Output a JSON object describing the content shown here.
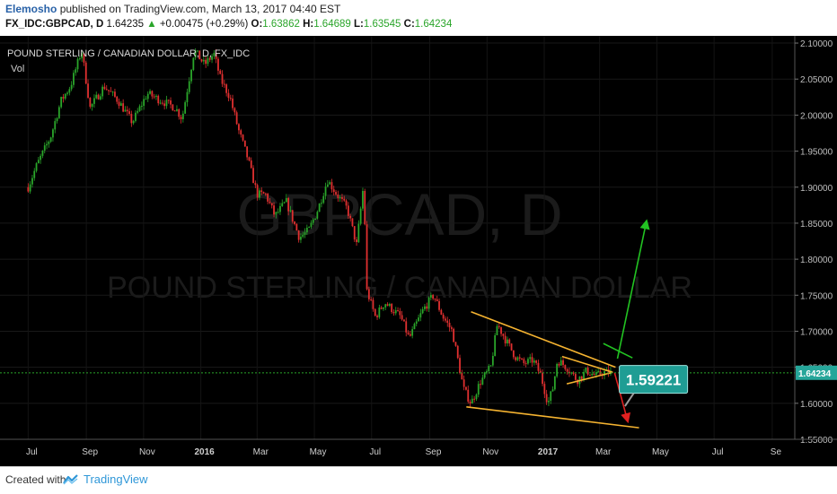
{
  "header": {
    "author": "Elemosho",
    "published_text": "published on TradingView.com, March 13, 2017 04:40 EST",
    "symbol": "FX_IDC:GBPCAD, D",
    "last": "1.64235",
    "change_arrow": "▲",
    "change": "+0.00475 (+0.29%)",
    "o_label": "O:",
    "o_value": "1.63862",
    "h_label": "H:",
    "h_value": "1.64689",
    "l_label": "L:",
    "l_value": "1.63545",
    "c_label": "C:",
    "c_value": "1.64234"
  },
  "watermark": {
    "big": "GBPCAD, D",
    "small": "POUND STERLING / CANADIAN DOLLAR"
  },
  "pane": {
    "title": "POUND STERLING / CANADIAN DOLLAR, D, FX_IDC",
    "indicator": "Vol"
  },
  "footer": {
    "created_with": "Created with",
    "brand": "TradingView"
  },
  "colors": {
    "up": "#2aa52a",
    "down": "#e03030",
    "background": "#000000",
    "trendline": "#f5b330",
    "arrow_up": "#22c322",
    "arrow_down": "#e02020",
    "price_tag": "#26a69a",
    "callout": "#1f9d94"
  },
  "chart_data": {
    "type": "candlestick",
    "symbol": "GBPCAD",
    "interval": "D",
    "ylim": [
      1.55,
      2.11
    ],
    "y_ticks": [
      "2.10000",
      "2.05000",
      "2.00000",
      "1.95000",
      "1.90000",
      "1.85000",
      "1.80000",
      "1.75000",
      "1.70000",
      "1.65000",
      "1.60000",
      "1.55000"
    ],
    "x_ticks": [
      "Jul",
      "Sep",
      "Nov",
      "2016",
      "Mar",
      "May",
      "Jul",
      "Sep",
      "Nov",
      "2017",
      "Mar",
      "May",
      "Jul",
      "Se"
    ],
    "last_price": "1.64234",
    "price_label": "1.59221",
    "price_path": [
      {
        "t": "2015-07-01",
        "p": 1.9
      },
      {
        "t": "2015-07-10",
        "p": 1.93
      },
      {
        "t": "2015-07-25",
        "p": 1.97
      },
      {
        "t": "2015-08-05",
        "p": 2.02
      },
      {
        "t": "2015-08-15",
        "p": 2.04
      },
      {
        "t": "2015-08-27",
        "p": 2.09
      },
      {
        "t": "2015-09-05",
        "p": 2.01
      },
      {
        "t": "2015-09-20",
        "p": 2.04
      },
      {
        "t": "2015-10-05",
        "p": 2.02
      },
      {
        "t": "2015-10-20",
        "p": 1.99
      },
      {
        "t": "2015-11-05",
        "p": 2.03
      },
      {
        "t": "2015-11-20",
        "p": 2.02
      },
      {
        "t": "2015-12-05",
        "p": 2.01
      },
      {
        "t": "2015-12-12",
        "p": 1.995
      },
      {
        "t": "2015-12-25",
        "p": 2.09
      },
      {
        "t": "2016-01-05",
        "p": 2.07
      },
      {
        "t": "2016-01-15",
        "p": 2.085
      },
      {
        "t": "2016-01-22",
        "p": 2.05
      },
      {
        "t": "2016-02-01",
        "p": 2.025
      },
      {
        "t": "2016-02-10",
        "p": 1.98
      },
      {
        "t": "2016-02-20",
        "p": 1.94
      },
      {
        "t": "2016-03-01",
        "p": 1.89
      },
      {
        "t": "2016-03-10",
        "p": 1.89
      },
      {
        "t": "2016-03-20",
        "p": 1.86
      },
      {
        "t": "2016-04-01",
        "p": 1.88
      },
      {
        "t": "2016-04-15",
        "p": 1.83
      },
      {
        "t": "2016-04-25",
        "p": 1.84
      },
      {
        "t": "2016-05-05",
        "p": 1.87
      },
      {
        "t": "2016-05-15",
        "p": 1.91
      },
      {
        "t": "2016-05-25",
        "p": 1.89
      },
      {
        "t": "2016-06-05",
        "p": 1.87
      },
      {
        "t": "2016-06-15",
        "p": 1.82
      },
      {
        "t": "2016-06-23",
        "p": 1.91
      },
      {
        "t": "2016-06-25",
        "p": 1.76
      },
      {
        "t": "2016-07-05",
        "p": 1.72
      },
      {
        "t": "2016-07-15",
        "p": 1.74
      },
      {
        "t": "2016-08-01",
        "p": 1.72
      },
      {
        "t": "2016-08-10",
        "p": 1.69
      },
      {
        "t": "2016-08-25",
        "p": 1.73
      },
      {
        "t": "2016-09-05",
        "p": 1.75
      },
      {
        "t": "2016-09-15",
        "p": 1.72
      },
      {
        "t": "2016-09-25",
        "p": 1.7
      },
      {
        "t": "2016-10-07",
        "p": 1.62
      },
      {
        "t": "2016-10-15",
        "p": 1.6
      },
      {
        "t": "2016-10-25",
        "p": 1.63
      },
      {
        "t": "2016-11-05",
        "p": 1.65
      },
      {
        "t": "2016-11-12",
        "p": 1.71
      },
      {
        "t": "2016-11-20",
        "p": 1.69
      },
      {
        "t": "2016-12-01",
        "p": 1.665
      },
      {
        "t": "2016-12-10",
        "p": 1.655
      },
      {
        "t": "2016-12-20",
        "p": 1.66
      },
      {
        "t": "2016-12-28",
        "p": 1.64
      },
      {
        "t": "2017-01-05",
        "p": 1.6
      },
      {
        "t": "2017-01-10",
        "p": 1.62
      },
      {
        "t": "2017-01-15",
        "p": 1.66
      },
      {
        "t": "2017-01-25",
        "p": 1.65
      },
      {
        "t": "2017-02-05",
        "p": 1.632
      },
      {
        "t": "2017-02-15",
        "p": 1.645
      },
      {
        "t": "2017-02-25",
        "p": 1.638
      },
      {
        "t": "2017-03-05",
        "p": 1.643
      },
      {
        "t": "2017-03-13",
        "p": 1.6423
      }
    ],
    "annotations": [
      {
        "kind": "trendline",
        "label": "upper",
        "from": {
          "t": "2016-10-15",
          "p": 1.727
        },
        "to": {
          "t": "2017-03-18",
          "p": 1.65
        }
      },
      {
        "kind": "trendline",
        "label": "lower",
        "from": {
          "t": "2016-10-10",
          "p": 1.595
        },
        "to": {
          "t": "2017-04-12",
          "p": 1.566
        }
      },
      {
        "kind": "trendline",
        "label": "inner-upper",
        "from": {
          "t": "2017-01-20",
          "p": 1.665
        },
        "to": {
          "t": "2017-03-15",
          "p": 1.643
        }
      },
      {
        "kind": "trendline",
        "label": "inner-lower",
        "from": {
          "t": "2017-01-25",
          "p": 1.627
        },
        "to": {
          "t": "2017-03-15",
          "p": 1.643
        }
      },
      {
        "kind": "horizontal",
        "label": "last-price",
        "p": 1.6423
      },
      {
        "kind": "arrow",
        "label": "bullish-target",
        "from": {
          "t": "2017-03-20",
          "p": 1.662
        },
        "to": {
          "t": "2017-04-20",
          "p": 1.853
        }
      },
      {
        "kind": "arrow",
        "label": "bearish-target",
        "from": {
          "t": "2017-03-17",
          "p": 1.642
        },
        "to": {
          "t": "2017-03-31",
          "p": 1.575
        }
      },
      {
        "kind": "segment",
        "label": "breakout-mark",
        "from": {
          "t": "2017-03-05",
          "p": 1.683
        },
        "to": {
          "t": "2017-04-05",
          "p": 1.663
        }
      }
    ]
  }
}
